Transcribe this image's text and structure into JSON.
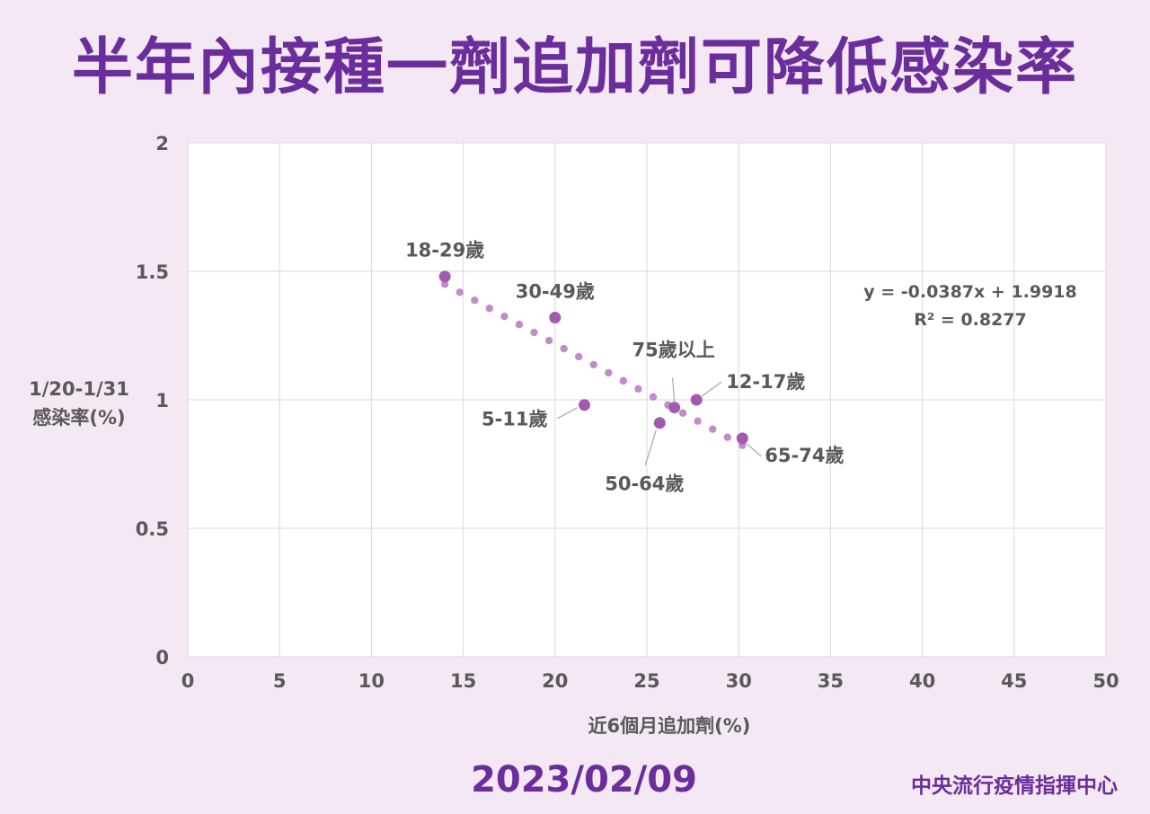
{
  "header": {
    "title": "半年內接種一劑追加劑可降低感染率"
  },
  "footer": {
    "date": "2023/02/09",
    "credit": "中央流行疫情指揮中心"
  },
  "colors": {
    "background": "#f3e8f4",
    "accent": "#6b2d9b",
    "point": "#a25ab0",
    "trendline": "#c08ccb",
    "grid": "#d9d9d9",
    "text": "#595959"
  },
  "chart_data": {
    "type": "scatter",
    "title": "",
    "xlabel": "近6個月追加劑(%)",
    "ylabel_lines": [
      "1/20-1/31",
      "感染率(%)"
    ],
    "xlim": [
      0,
      50
    ],
    "ylim": [
      0,
      2
    ],
    "xticks": [
      "0",
      "5",
      "10",
      "15",
      "20",
      "25",
      "30",
      "35",
      "40",
      "45",
      "50"
    ],
    "yticks": [
      "0",
      "0.5",
      "1",
      "1.5",
      "2"
    ],
    "grid": true,
    "points": [
      {
        "label": "18-29歲",
        "x": 14.0,
        "y": 1.48
      },
      {
        "label": "30-49歲",
        "x": 20.0,
        "y": 1.32
      },
      {
        "label": "5-11歲",
        "x": 21.6,
        "y": 0.98
      },
      {
        "label": "50-64歲",
        "x": 25.7,
        "y": 0.91
      },
      {
        "label": "75歲以上",
        "x": 26.5,
        "y": 0.97
      },
      {
        "label": "12-17歲",
        "x": 27.7,
        "y": 1.0
      },
      {
        "label": "65-74歲",
        "x": 30.2,
        "y": 0.85
      }
    ],
    "trendline": {
      "type": "linear",
      "slope": -0.0387,
      "intercept": 1.9918,
      "x_range": [
        14.0,
        30.2
      ],
      "style": "dotted",
      "equation_text": "y = -0.0387x + 1.9918",
      "r2_text": "R² = 0.8277"
    }
  }
}
